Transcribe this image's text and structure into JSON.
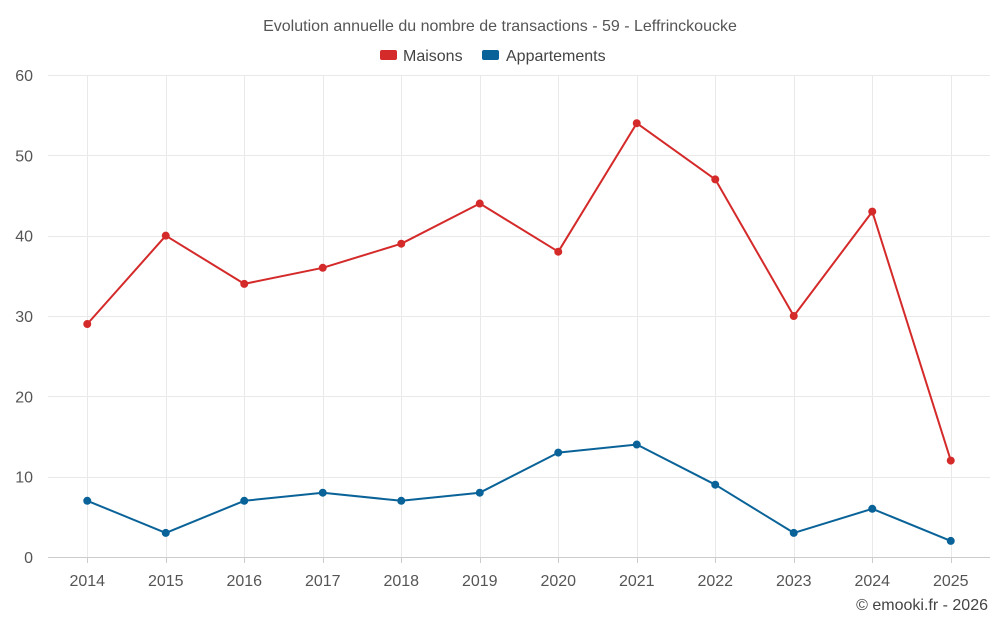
{
  "chart_data": {
    "type": "line",
    "title": "Evolution annuelle du nombre de transactions - 59 - Leffrinckoucke",
    "categories": [
      "2014",
      "2015",
      "2016",
      "2017",
      "2018",
      "2019",
      "2020",
      "2021",
      "2022",
      "2023",
      "2024",
      "2025"
    ],
    "series": [
      {
        "name": "Maisons",
        "color": "#d42a2a",
        "values": [
          29,
          40,
          34,
          36,
          39,
          44,
          38,
          54,
          47,
          30,
          43,
          12
        ]
      },
      {
        "name": "Appartements",
        "color": "#0a6398",
        "values": [
          7,
          3,
          7,
          8,
          7,
          8,
          13,
          14,
          9,
          3,
          6,
          2
        ]
      }
    ],
    "ylim": [
      0,
      60
    ],
    "yticks": [
      0,
      10,
      20,
      30,
      40,
      50,
      60
    ],
    "xlabel": "",
    "ylabel": "",
    "grid": true,
    "legend": "top-center"
  },
  "credit": "© emooki.fr - 2026"
}
